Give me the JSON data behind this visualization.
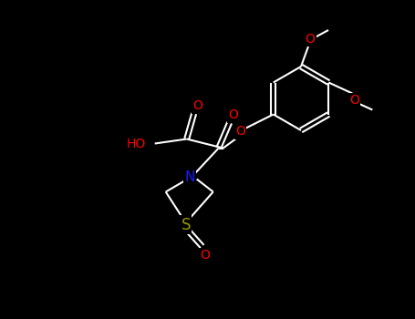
{
  "background_color": "#000000",
  "bond_color": "#ffffff",
  "atom_colors": {
    "O": "#ff0000",
    "N": "#1a1aff",
    "S": "#999900",
    "C": "#ffffff",
    "H": "#ffffff"
  },
  "figsize": [
    4.55,
    3.5
  ],
  "dpi": 100
}
